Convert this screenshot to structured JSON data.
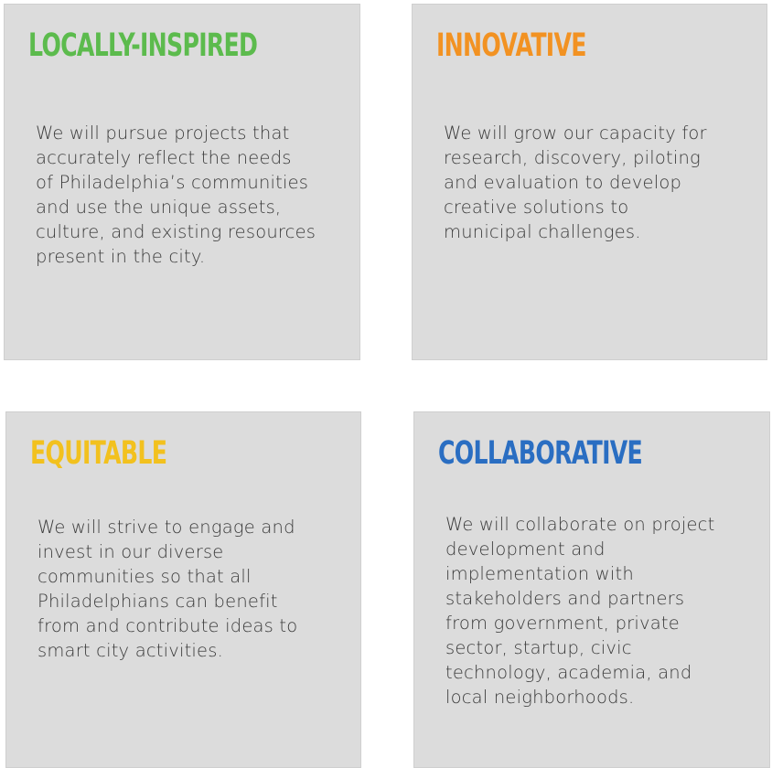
{
  "cards": [
    {
      "title": "LOCALLY-INSPIRED",
      "color": "#5cbb4d",
      "lines": [
        "We will pursue projects that",
        "accurately reflect the needs",
        "of Philadelphia’s communities",
        "and use the unique assets,",
        "culture, and existing resources",
        "present in the city."
      ]
    },
    {
      "title": "INNOVATIVE",
      "color": "#f29222",
      "lines": [
        "We will grow our capacity for",
        "research, discovery, piloting",
        "and evaluation to develop",
        "creative solutions to",
        "municipal challenges."
      ]
    },
    {
      "title": "EQUITABLE",
      "color": "#f2c11e",
      "lines": [
        "We will strive to engage and",
        "invest in our diverse",
        "communities so that all",
        "Philadelphians can benefit",
        "from and contribute ideas to",
        "smart city activities."
      ]
    },
    {
      "title": "COLLABORATIVE",
      "color": "#2a6ec2",
      "lines": [
        "We will collaborate on project",
        "development and",
        "implementation with",
        "stakeholders and partners",
        "from government, private",
        "sector, startup, civic",
        "technology, academia, and",
        "local neighborhoods."
      ]
    }
  ]
}
